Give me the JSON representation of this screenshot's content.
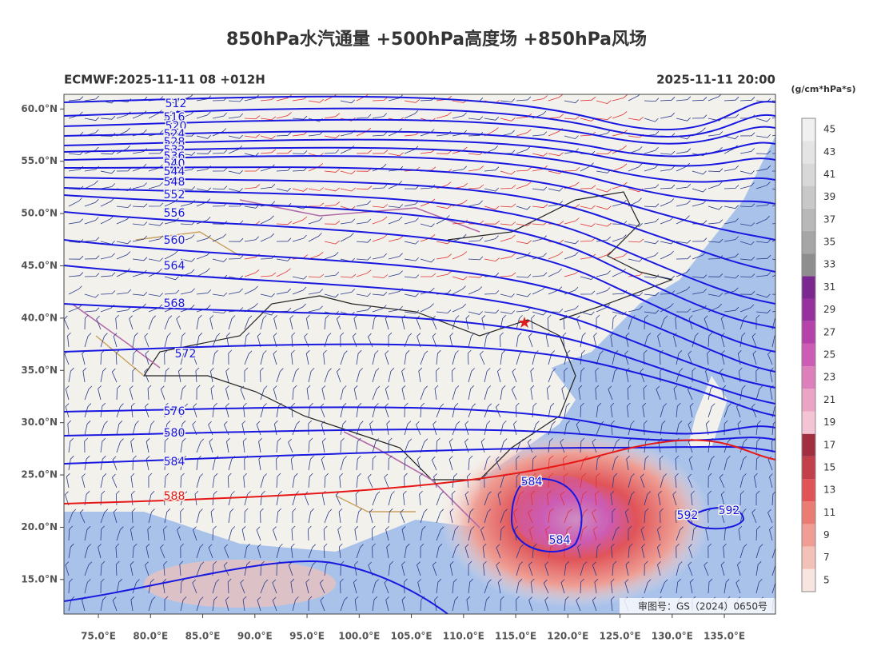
{
  "header": {
    "title": "850hPa水汽通量 +500hPa高度场 +850hPa风场",
    "model_run": "ECMWF:2025-11-11 08 +012H",
    "valid_time": "2025-11-11 20:00"
  },
  "map": {
    "lon_range": [
      71.7,
      139.9
    ],
    "lat_range": [
      11.7,
      61.4
    ],
    "lat_ticks": [
      {
        "value": 60,
        "label": "60.0°N"
      },
      {
        "value": 55,
        "label": "55.0°N"
      },
      {
        "value": 50,
        "label": "50.0°N"
      },
      {
        "value": 45,
        "label": "45.0°N"
      },
      {
        "value": 40,
        "label": "40.0°N"
      },
      {
        "value": 35,
        "label": "35.0°N"
      },
      {
        "value": 30,
        "label": "30.0°N"
      },
      {
        "value": 25,
        "label": "25.0°N"
      },
      {
        "value": 20,
        "label": "20.0°N"
      },
      {
        "value": 15,
        "label": "15.0°N"
      }
    ],
    "lon_ticks": [
      {
        "value": 75,
        "label": "75.0°E"
      },
      {
        "value": 80,
        "label": "80.0°E"
      },
      {
        "value": 85,
        "label": "85.0°E"
      },
      {
        "value": 90,
        "label": "90.0°E"
      },
      {
        "value": 95,
        "label": "95.0°E"
      },
      {
        "value": 100,
        "label": "100.0°E"
      },
      {
        "value": 105,
        "label": "105.0°E"
      },
      {
        "value": 110,
        "label": "110.0°E"
      },
      {
        "value": 115,
        "label": "115.0°E"
      },
      {
        "value": 120,
        "label": "120.0°E"
      },
      {
        "value": 125,
        "label": "125.0°E"
      },
      {
        "value": 130,
        "label": "130.0°E"
      },
      {
        "value": 135,
        "label": "135.0°E"
      }
    ],
    "contour_labels": [
      "512",
      "516",
      "520",
      "524",
      "528",
      "532",
      "536",
      "540",
      "544",
      "548",
      "552",
      "556",
      "560",
      "564",
      "568",
      "572",
      "576",
      "580",
      "584",
      "588",
      "584",
      "584",
      "592",
      "592"
    ],
    "approval": "审图号：GS（2024）0650号"
  },
  "colorbar": {
    "unit": "(g/cm*hPa*s)",
    "ticks": [
      5,
      7,
      9,
      11,
      13,
      15,
      17,
      19,
      21,
      23,
      25,
      27,
      29,
      31,
      33,
      35,
      37,
      39,
      41,
      43,
      45
    ],
    "colors": [
      "#f8e4e0",
      "#f2c2b8",
      "#ee9e94",
      "#ea7c74",
      "#e05458",
      "#c2404a",
      "#a03040",
      "#f2c4d4",
      "#eaa4c4",
      "#dc80bc",
      "#cc5cb4",
      "#b442a8",
      "#96309e",
      "#7a2890",
      "#8e8e8e",
      "#a6a6a6",
      "#b8b8b8",
      "#c8c8c8",
      "#d8d8d8",
      "#e4e4e4",
      "#f0f0f0"
    ]
  }
}
